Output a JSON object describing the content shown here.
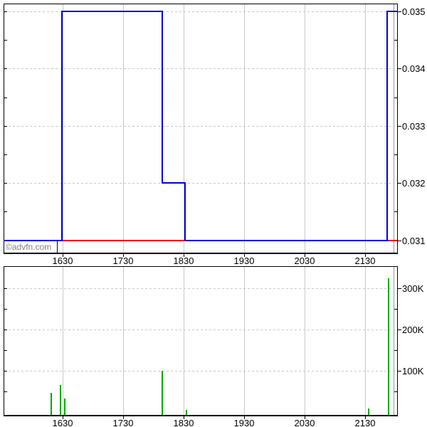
{
  "watermark": "©advfn.com",
  "colors": {
    "price_line": "#0000e0",
    "prev_close_line": "#ee0000",
    "volume_bar": "#00aa00",
    "grid_horizontal": "#c2ccc2",
    "grid_vertical": "#c9c9c9",
    "last_trade_marker": "#9a9a9a",
    "plot_border": "#000000",
    "axis_text": "#000000",
    "watermark_text": "#808080",
    "background": "#ffffff"
  },
  "time_axis": {
    "start_h": 15.52,
    "end_h": 22.03,
    "last_trade_marker_h": 21.97,
    "ticks": [
      {
        "label": "1630",
        "h": 16.5
      },
      {
        "label": "1730",
        "h": 17.5
      },
      {
        "label": "1830",
        "h": 18.5
      },
      {
        "label": "1930",
        "h": 19.5
      },
      {
        "label": "2030",
        "h": 20.5
      },
      {
        "label": "2130",
        "h": 21.5
      }
    ]
  },
  "chart_data": [
    {
      "type": "line",
      "name": "price",
      "step": true,
      "ylim": [
        0.03077,
        0.03514
      ],
      "xticks": [
        "1630",
        "1730",
        "1830",
        "1930",
        "2030",
        "2130"
      ],
      "yticks": [
        {
          "label": "0.035",
          "value": 0.035
        },
        {
          "label": "0.034",
          "value": 0.034
        },
        {
          "label": "0.033",
          "value": 0.033
        },
        {
          "label": "0.032",
          "value": 0.032
        },
        {
          "label": "0.031",
          "value": 0.031
        }
      ],
      "minor_tick_values": [
        0.0345,
        0.0335,
        0.0325,
        0.0315
      ],
      "previous_close_line": {
        "value": 0.031
      },
      "series_vertices": [
        {
          "h": 15.52,
          "time": "15:31",
          "price": 0.031
        },
        {
          "h": 16.49,
          "time": "16:29",
          "price": 0.031
        },
        {
          "h": 16.49,
          "time": "16:29",
          "price": 0.035
        },
        {
          "h": 18.14,
          "time": "18:08",
          "price": 0.035
        },
        {
          "h": 18.14,
          "time": "18:08",
          "price": 0.032
        },
        {
          "h": 18.52,
          "time": "18:31",
          "price": 0.032
        },
        {
          "h": 18.52,
          "time": "18:31",
          "price": 0.031
        },
        {
          "h": 21.87,
          "time": "21:52",
          "price": 0.031
        },
        {
          "h": 21.87,
          "time": "21:52",
          "price": 0.035
        },
        {
          "h": 22.03,
          "time": "22:02",
          "price": 0.035
        }
      ]
    },
    {
      "type": "bar",
      "name": "volume",
      "ylim": [
        0,
        352000
      ],
      "xticks": [
        "1630",
        "1730",
        "1830",
        "1930",
        "2030",
        "2130"
      ],
      "yticks": [
        {
          "label": "300K",
          "value": 300000
        },
        {
          "label": "200K",
          "value": 200000
        },
        {
          "label": "100K",
          "value": 100000
        }
      ],
      "minor_tick_values": [
        250000,
        150000,
        50000
      ],
      "bars": [
        {
          "h": 16.31,
          "time": "16:19",
          "volume": 46000
        },
        {
          "h": 16.465,
          "time": "16:28",
          "volume": 65000
        },
        {
          "h": 16.53,
          "time": "16:31",
          "volume": 33000
        },
        {
          "h": 18.147,
          "time": "18:09",
          "volume": 100000
        },
        {
          "h": 18.547,
          "time": "18:33",
          "volume": 5000
        },
        {
          "h": 21.56,
          "time": "21:34",
          "volume": 9000
        },
        {
          "h": 21.89,
          "time": "21:53",
          "volume": 325000
        }
      ]
    }
  ]
}
